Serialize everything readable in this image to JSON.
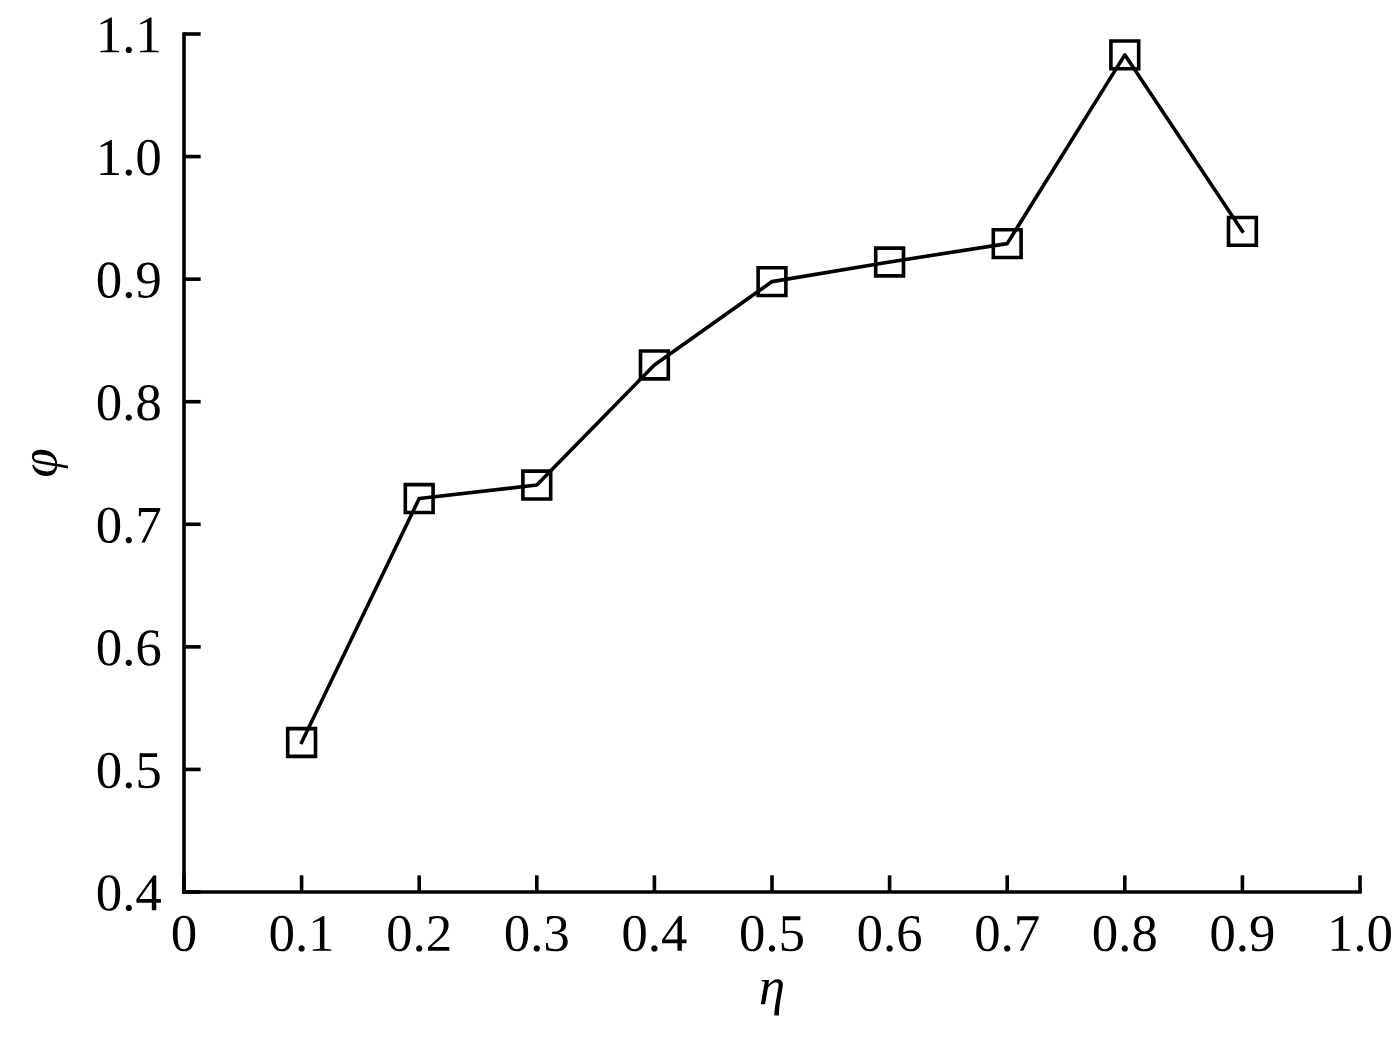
{
  "chart_data": {
    "type": "line",
    "xlabel": "η",
    "ylabel": "φ",
    "x": [
      0.1,
      0.2,
      0.3,
      0.4,
      0.5,
      0.6,
      0.7,
      0.8,
      0.9
    ],
    "series": [
      {
        "color": "#000000",
        "values": [
          0.522,
          0.721,
          0.732,
          0.83,
          0.898,
          0.914,
          0.929,
          1.083,
          0.939
        ]
      }
    ],
    "xlim": [
      0,
      1.0
    ],
    "xticks": [
      0,
      0.1,
      0.2,
      0.3,
      0.4,
      0.5,
      0.6,
      0.7,
      0.8,
      0.9,
      {
        "value": 1.0,
        "label": "1.0"
      }
    ],
    "ylim": [
      0.4,
      1.1
    ],
    "yticks": [
      0.4,
      0.5,
      0.6,
      0.7,
      0.8,
      0.9,
      {
        "value": 1.0,
        "label": "1.0"
      },
      1.1
    ],
    "marker": "square",
    "line_style": "solid",
    "grid": false,
    "legend": false
  }
}
